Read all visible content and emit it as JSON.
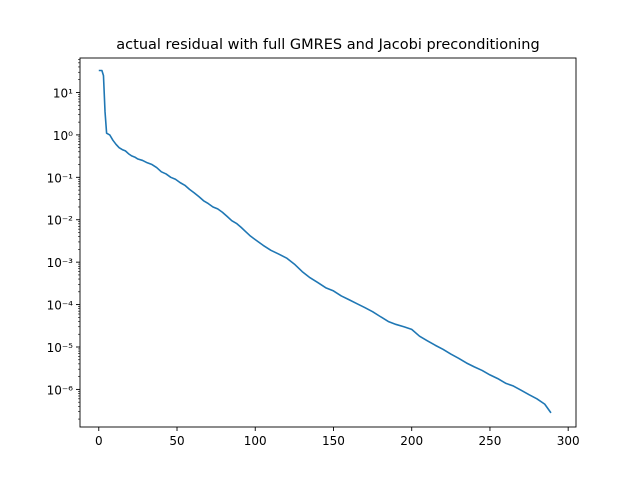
{
  "chart_data": {
    "type": "line",
    "title": "actual residual with full GMRES and Jacobi preconditioning",
    "xlabel": "",
    "ylabel": "",
    "xlim": [
      -12,
      305
    ],
    "ylim": [
      1.3e-07,
      65
    ],
    "yscale": "log",
    "grid": false,
    "line_color": "#1f77b4",
    "xticks": [
      {
        "value": 0,
        "label": "0"
      },
      {
        "value": 50,
        "label": "50"
      },
      {
        "value": 100,
        "label": "100"
      },
      {
        "value": 150,
        "label": "150"
      },
      {
        "value": 200,
        "label": "200"
      },
      {
        "value": 250,
        "label": "250"
      },
      {
        "value": 300,
        "label": "300"
      }
    ],
    "yticks": [
      {
        "exp": -6,
        "label": "10⁻⁶"
      },
      {
        "exp": -5,
        "label": "10⁻⁵"
      },
      {
        "exp": -4,
        "label": "10⁻⁴"
      },
      {
        "exp": -3,
        "label": "10⁻³"
      },
      {
        "exp": -2,
        "label": "10⁻²"
      },
      {
        "exp": -1,
        "label": "10⁻¹"
      },
      {
        "exp": 0,
        "label": "10⁰"
      },
      {
        "exp": 1,
        "label": "10¹"
      }
    ],
    "series": [
      {
        "x": [
          0,
          2,
          3,
          4,
          5,
          7,
          9,
          11,
          13,
          15,
          17,
          19,
          21,
          23,
          25,
          28,
          31,
          34,
          37,
          40,
          43,
          46,
          49,
          52,
          55,
          58,
          61,
          64,
          67,
          70,
          73,
          76,
          79,
          82,
          85,
          88,
          91,
          94,
          97,
          100,
          105,
          110,
          115,
          120,
          125,
          130,
          135,
          140,
          145,
          150,
          155,
          160,
          165,
          170,
          175,
          180,
          185,
          190,
          195,
          200,
          205,
          210,
          215,
          220,
          225,
          230,
          235,
          240,
          245,
          250,
          255,
          260,
          265,
          270,
          275,
          280,
          285,
          289
        ],
        "y": [
          33,
          33,
          25,
          3.5,
          1.1,
          1.0,
          0.75,
          0.6,
          0.5,
          0.45,
          0.42,
          0.36,
          0.32,
          0.3,
          0.27,
          0.25,
          0.22,
          0.2,
          0.17,
          0.135,
          0.12,
          0.1,
          0.09,
          0.075,
          0.065,
          0.052,
          0.043,
          0.035,
          0.028,
          0.024,
          0.02,
          0.018,
          0.015,
          0.012,
          0.0095,
          0.0082,
          0.0066,
          0.0052,
          0.0041,
          0.0034,
          0.0025,
          0.0019,
          0.00155,
          0.00125,
          0.0009,
          0.0006,
          0.00043,
          0.00033,
          0.00025,
          0.00021,
          0.00016,
          0.00013,
          0.000105,
          8.5e-05,
          6.8e-05,
          5.2e-05,
          4e-05,
          3.4e-05,
          3e-05,
          2.6e-05,
          1.8e-05,
          1.4e-05,
          1.1e-05,
          8.8e-06,
          6.8e-06,
          5.4e-06,
          4.2e-06,
          3.4e-06,
          2.8e-06,
          2.2e-06,
          1.8e-06,
          1.4e-06,
          1.2e-06,
          9.5e-07,
          7.5e-07,
          6e-07,
          4.5e-07,
          2.8e-07
        ]
      }
    ]
  }
}
